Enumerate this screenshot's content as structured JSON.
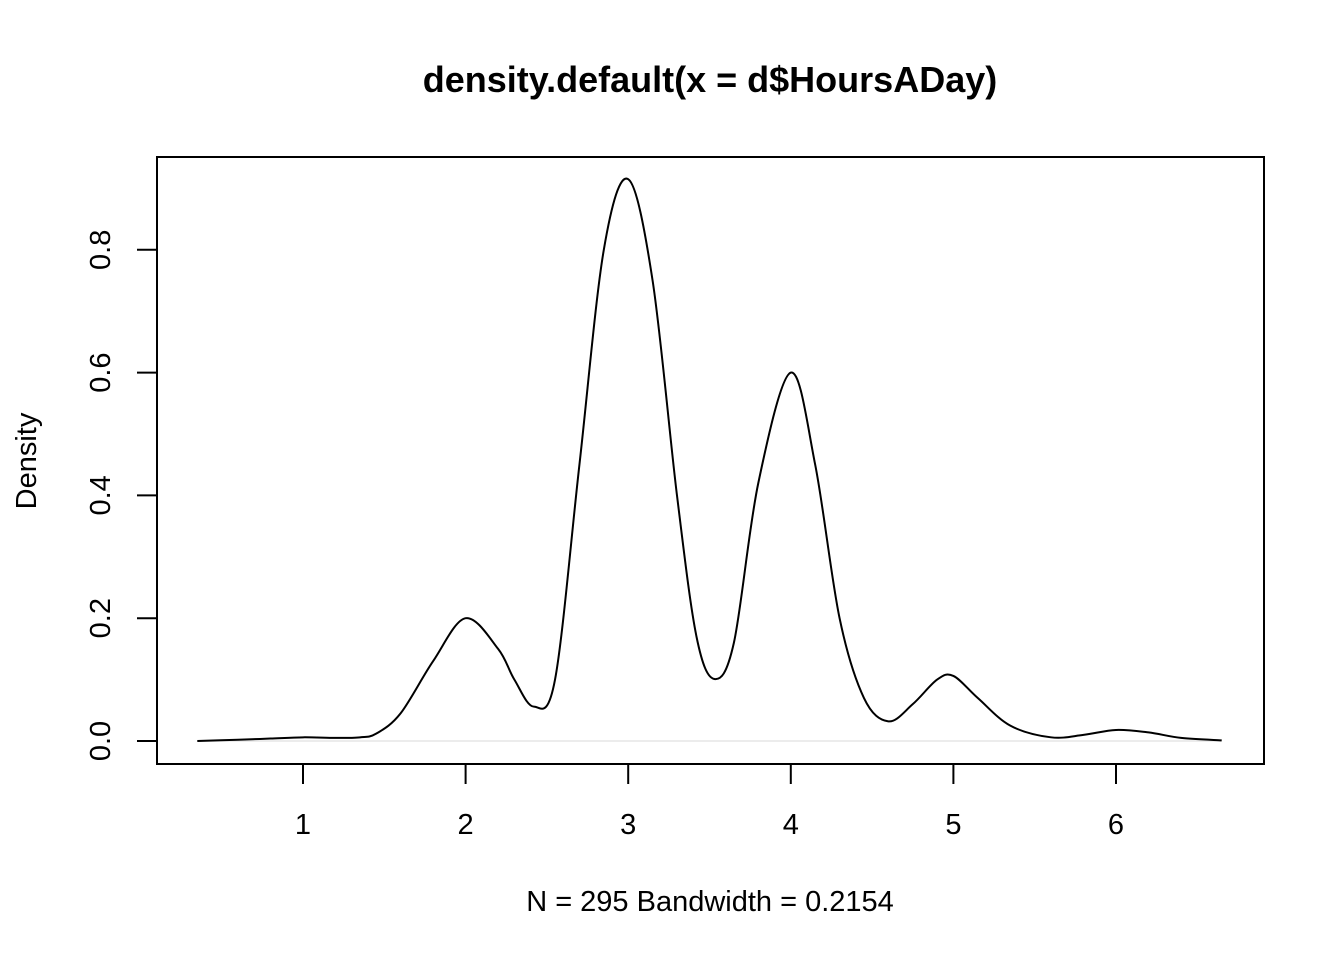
{
  "chart_data": {
    "type": "line",
    "title": "density.default(x = d$HoursADay)",
    "xlabel": "N = 295   Bandwidth = 0.2154",
    "ylabel": "Density",
    "xlim": [
      0.35,
      6.65
    ],
    "ylim": [
      0,
      0.92
    ],
    "x_ticks": [
      1,
      2,
      3,
      4,
      5,
      6
    ],
    "x_tick_labels": [
      "1",
      "2",
      "3",
      "4",
      "5",
      "6"
    ],
    "y_ticks": [
      0.0,
      0.2,
      0.4,
      0.6,
      0.8
    ],
    "y_tick_labels": [
      "0.0",
      "0.2",
      "0.4",
      "0.6",
      "0.8"
    ],
    "zero_line": true,
    "grid": false,
    "line_color": "#000000",
    "series": [
      {
        "x": [
          0.35,
          0.6,
          0.8,
          1.0,
          1.2,
          1.35,
          1.45,
          1.6,
          1.8,
          2.0,
          2.2,
          2.3,
          2.42,
          2.55,
          2.7,
          2.85,
          3.0,
          3.15,
          3.3,
          3.42,
          3.53,
          3.65,
          3.8,
          4.0,
          4.15,
          4.3,
          4.45,
          4.6,
          4.75,
          4.9,
          5.0,
          5.15,
          5.35,
          5.6,
          5.8,
          6.0,
          6.2,
          6.4,
          6.65
        ],
        "y": [
          0.0,
          0.002,
          0.004,
          0.006,
          0.005,
          0.006,
          0.012,
          0.045,
          0.13,
          0.2,
          0.15,
          0.1,
          0.056,
          0.1,
          0.45,
          0.8,
          0.915,
          0.75,
          0.4,
          0.17,
          0.101,
          0.16,
          0.42,
          0.6,
          0.45,
          0.2,
          0.07,
          0.032,
          0.06,
          0.1,
          0.106,
          0.07,
          0.025,
          0.006,
          0.01,
          0.018,
          0.014,
          0.005,
          0.001
        ]
      }
    ]
  }
}
